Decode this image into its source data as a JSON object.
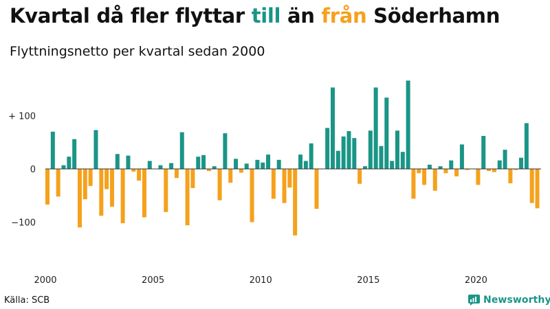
{
  "header": {
    "title_part1": "Kvartal då fler flyttar ",
    "title_till": "till",
    "title_part2": " än ",
    "title_fran": "från",
    "title_part3": " Söderhamn",
    "subtitle": "Flyttningsnetto per kvartal sedan 2000"
  },
  "footer": {
    "source": "Källa: SCB",
    "brand": "Newsworthy",
    "brand_icon": "newsworthy-logo-icon"
  },
  "colors": {
    "positive": "#1a9587",
    "negative": "#f5a11c",
    "axis": "#333333"
  },
  "chart_data": {
    "type": "bar",
    "title": "Kvartal då fler flyttar till än från Söderhamn",
    "subtitle": "Flyttningsnetto per kvartal sedan 2000",
    "xlabel": "",
    "ylabel": "",
    "x_start_year": 2000,
    "quarters_per_year": 4,
    "ylim": [
      -160,
      170
    ],
    "y_ticks": [
      100,
      0,
      -100
    ],
    "y_tick_labels": [
      "+ 100",
      "0",
      "−100"
    ],
    "x_ticks": [
      2000,
      2005,
      2010,
      2015,
      2020
    ],
    "grid": false,
    "values": [
      -67,
      70,
      -52,
      7,
      23,
      56,
      -110,
      -57,
      -32,
      73,
      -88,
      -38,
      -71,
      28,
      -102,
      25,
      -5,
      -22,
      -91,
      15,
      0,
      7,
      -81,
      11,
      -17,
      69,
      -106,
      -36,
      23,
      26,
      -4,
      5,
      -59,
      67,
      -26,
      19,
      -7,
      10,
      -100,
      17,
      12,
      27,
      -56,
      17,
      -64,
      -35,
      -125,
      27,
      15,
      48,
      -75,
      0,
      77,
      153,
      34,
      61,
      71,
      58,
      -28,
      5,
      72,
      153,
      43,
      134,
      15,
      72,
      32,
      166,
      -56,
      -8,
      -30,
      8,
      -41,
      5,
      -8,
      16,
      -14,
      46,
      -2,
      0,
      -30,
      62,
      -4,
      -6,
      16,
      36,
      -27,
      -2,
      21,
      86,
      -64,
      -74
    ]
  }
}
